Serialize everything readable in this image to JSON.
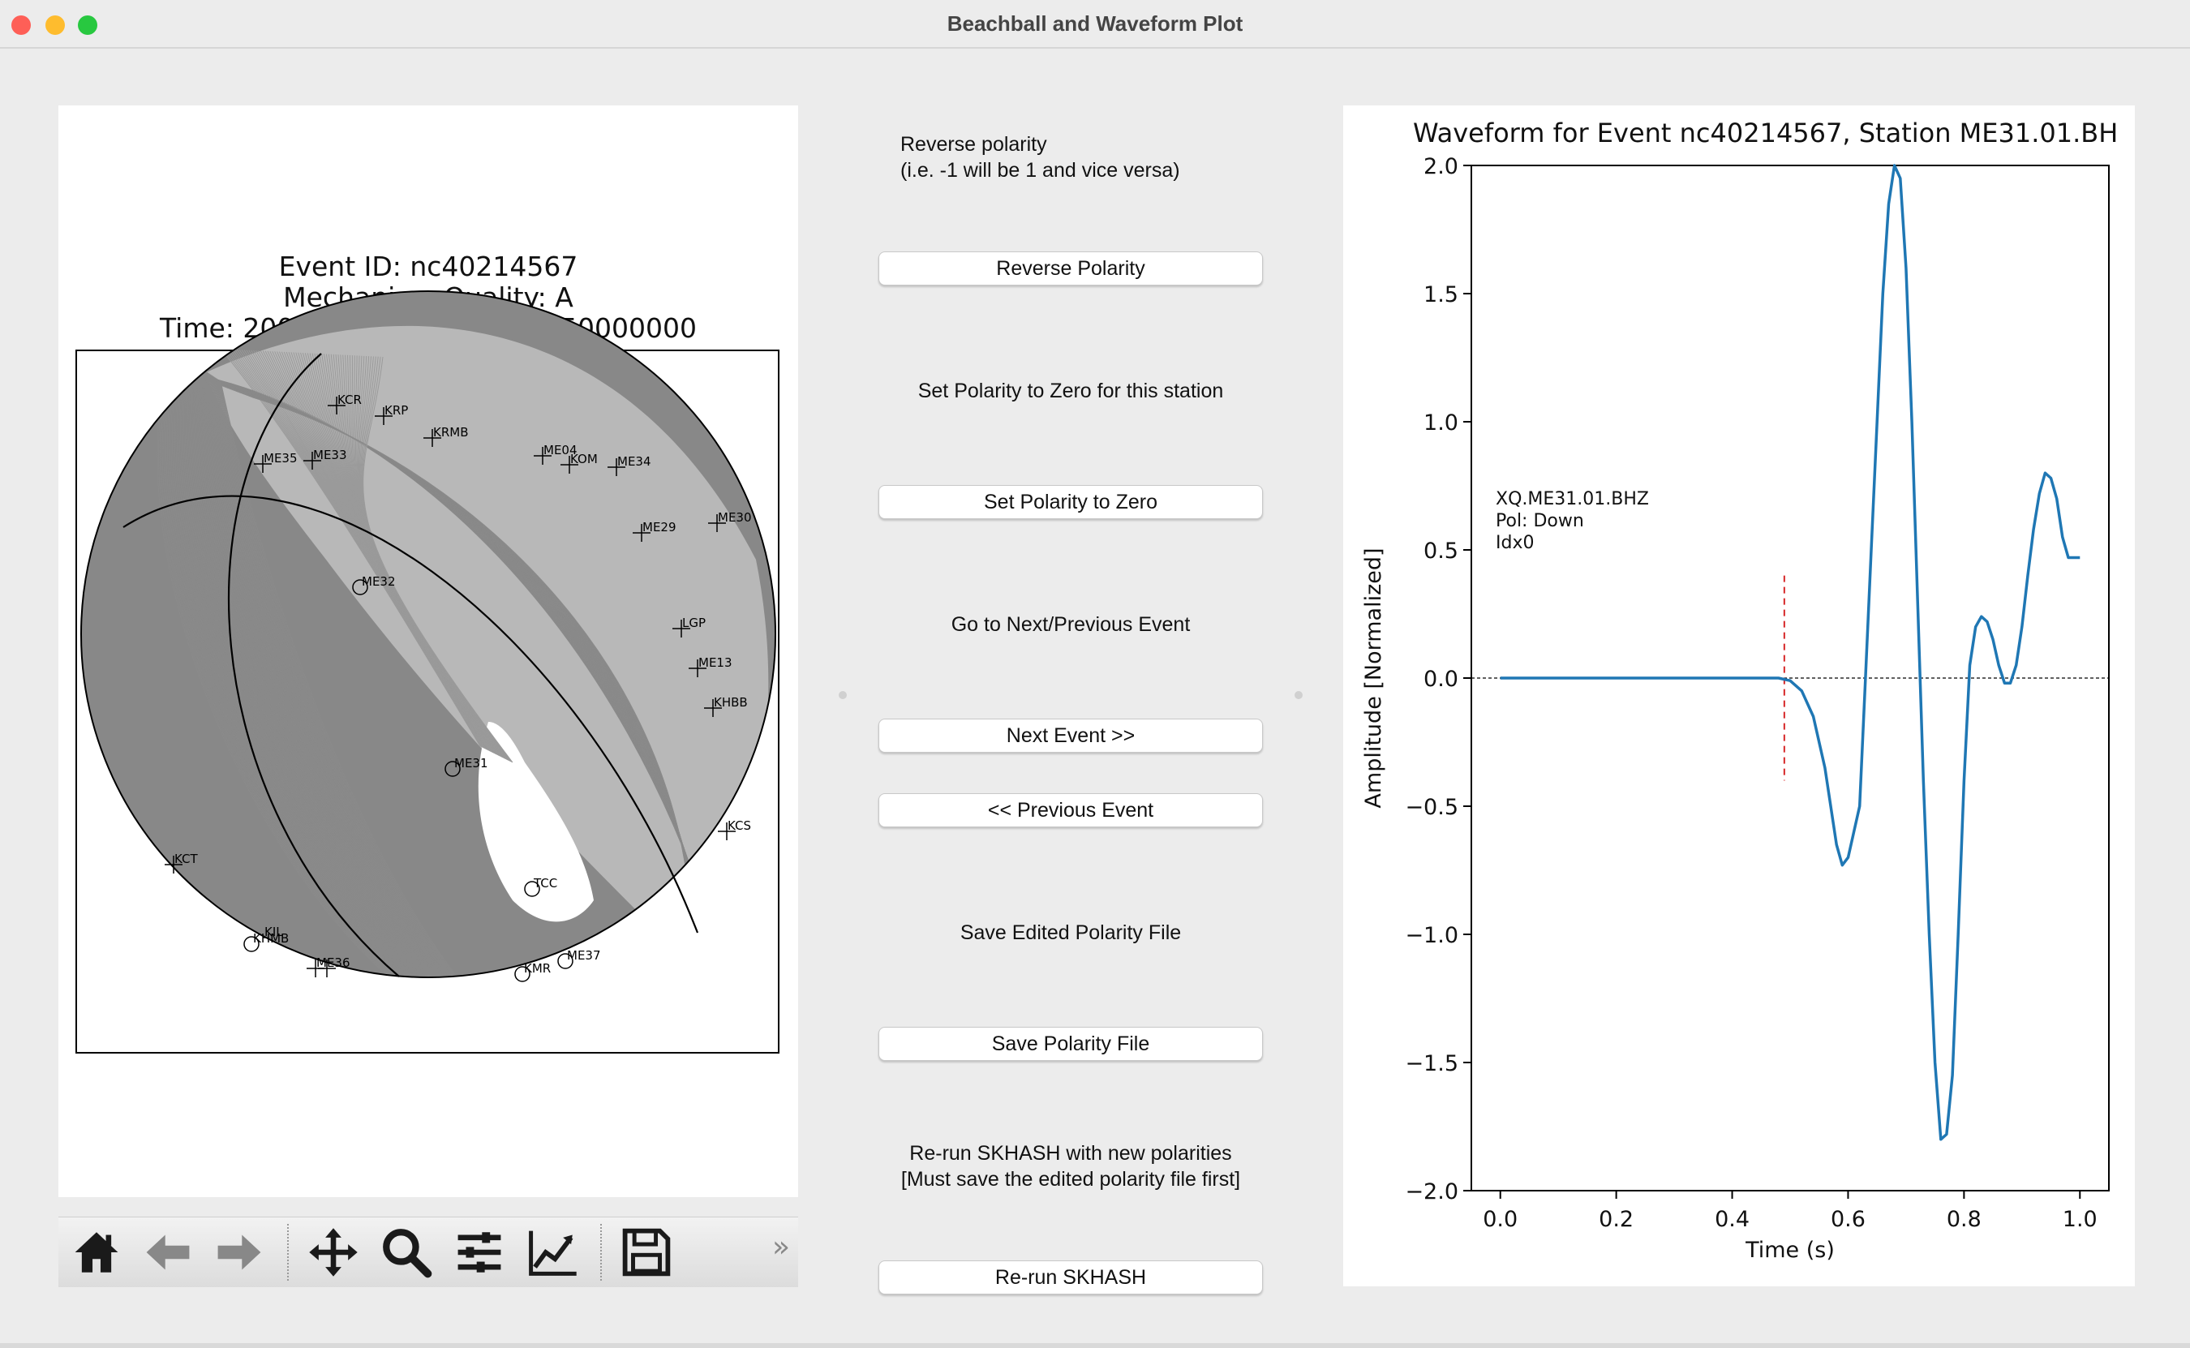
{
  "window": {
    "title": "Beachball and Waveform Plot"
  },
  "beachball": {
    "title_lines": [
      "Event ID: nc40214567",
      "Mechanism Quality: A",
      "Time: 2008-04-04T17:11:26.150000000"
    ],
    "stations_plus": [
      "KCR",
      "KRP",
      "KRMB",
      "ME35",
      "ME33",
      "ME04",
      "KOM",
      "ME34",
      "ME30",
      "ME29",
      "LGP",
      "ME13",
      "KHBB",
      "KCS",
      "KCT",
      "ME36"
    ],
    "stations_circle": [
      "ME32",
      "ME31",
      "TCC",
      "ME37",
      "KMR",
      "KHMB"
    ],
    "extra_labels": [
      "KIL"
    ],
    "colors": {
      "compressional": "#888888",
      "dilatational": "#ffffff",
      "lines": "#8a8a8a"
    }
  },
  "toolbar": {
    "icons": [
      "home-icon",
      "back-arrow-icon",
      "forward-arrow-icon",
      "pan-icon",
      "zoom-icon",
      "configure-subplots-icon",
      "edit-axis-icon",
      "save-icon"
    ],
    "more_label": "»"
  },
  "controls": {
    "reverse_label_1": "Reverse polarity",
    "reverse_label_2": "(i.e. -1 will be 1 and vice versa)",
    "reverse_button": "Reverse Polarity",
    "zero_label": "Set Polarity to Zero for this station",
    "zero_button": "Set Polarity to Zero",
    "nav_label": "Go to Next/Previous Event",
    "next_button": "Next Event >>",
    "prev_button": "<< Previous Event",
    "save_label": "Save Edited Polarity File",
    "save_button": "Save Polarity File",
    "rerun_label_1": "Re-run SKHASH with new polarities",
    "rerun_label_2": "[Must save the edited polarity file first]",
    "rerun_button": "Re-run SKHASH"
  },
  "chart_data": {
    "type": "line",
    "title": "Waveform for Event nc40214567, Station ME31.01.BH",
    "xlabel": "Time (s)",
    "ylabel": "Amplitude [Normalized]",
    "xlim": [
      -0.05,
      1.05
    ],
    "ylim": [
      -2.0,
      2.0
    ],
    "xticks": [
      0.0,
      0.2,
      0.4,
      0.6,
      0.8,
      1.0
    ],
    "xtick_labels": [
      "0.0",
      "0.2",
      "0.4",
      "0.6",
      "0.8",
      "1.0"
    ],
    "yticks": [
      2.0,
      1.5,
      1.0,
      0.5,
      0.0,
      -0.5,
      -1.0,
      -1.5,
      -2.0
    ],
    "ytick_labels": [
      "2.0",
      "1.5",
      "1.0",
      "0.5",
      "0.0",
      "−0.5",
      "−1.0",
      "−1.5",
      "−2.0"
    ],
    "annotation": [
      "XQ.ME31.01.BHZ",
      "Pol: Down",
      "Idx0"
    ],
    "pick_time": 0.49,
    "pick_range": [
      -0.4,
      0.4
    ],
    "zero_line": true,
    "series": [
      {
        "color": "#1f77b4",
        "x": [
          0.0,
          0.1,
          0.2,
          0.3,
          0.4,
          0.45,
          0.48,
          0.5,
          0.52,
          0.54,
          0.56,
          0.58,
          0.59,
          0.6,
          0.62,
          0.63,
          0.64,
          0.65,
          0.66,
          0.67,
          0.68,
          0.69,
          0.7,
          0.71,
          0.72,
          0.73,
          0.74,
          0.75,
          0.76,
          0.77,
          0.78,
          0.79,
          0.8,
          0.81,
          0.82,
          0.83,
          0.84,
          0.85,
          0.86,
          0.87,
          0.88,
          0.89,
          0.9,
          0.91,
          0.92,
          0.93,
          0.94,
          0.95,
          0.96,
          0.97,
          0.98,
          0.99,
          1.0
        ],
        "y": [
          0.0,
          0.0,
          0.0,
          0.0,
          0.0,
          0.0,
          0.0,
          -0.01,
          -0.05,
          -0.15,
          -0.35,
          -0.65,
          -0.73,
          -0.7,
          -0.5,
          0.0,
          0.5,
          1.0,
          1.5,
          1.85,
          2.0,
          1.95,
          1.6,
          1.0,
          0.3,
          -0.4,
          -1.0,
          -1.5,
          -1.8,
          -1.78,
          -1.55,
          -1.0,
          -0.4,
          0.05,
          0.2,
          0.24,
          0.22,
          0.15,
          0.05,
          -0.02,
          -0.02,
          0.05,
          0.2,
          0.4,
          0.58,
          0.72,
          0.8,
          0.78,
          0.7,
          0.55,
          0.47,
          0.47,
          0.47
        ]
      }
    ]
  }
}
